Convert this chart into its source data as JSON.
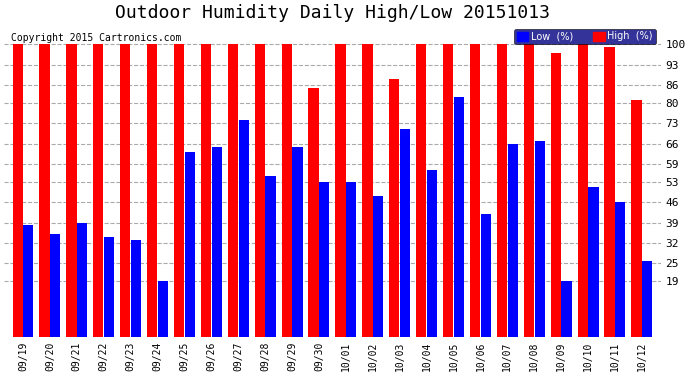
{
  "title": "Outdoor Humidity Daily High/Low 20151013",
  "copyright": "Copyright 2015 Cartronics.com",
  "categories": [
    "09/19",
    "09/20",
    "09/21",
    "09/22",
    "09/23",
    "09/24",
    "09/25",
    "09/26",
    "09/27",
    "09/28",
    "09/29",
    "09/30",
    "10/01",
    "10/02",
    "10/03",
    "10/04",
    "10/05",
    "10/06",
    "10/07",
    "10/08",
    "10/09",
    "10/10",
    "10/11",
    "10/12"
  ],
  "high_values": [
    100,
    100,
    100,
    100,
    100,
    100,
    100,
    100,
    100,
    100,
    100,
    85,
    100,
    100,
    88,
    100,
    100,
    100,
    100,
    100,
    97,
    100,
    99,
    81
  ],
  "low_values": [
    38,
    35,
    39,
    34,
    33,
    19,
    63,
    65,
    74,
    55,
    65,
    53,
    53,
    48,
    71,
    57,
    82,
    42,
    66,
    67,
    19,
    51,
    46,
    26
  ],
  "bar_color_high": "#ff0000",
  "bar_color_low": "#0000ff",
  "bg_color": "#ffffff",
  "grid_color": "#aaaaaa",
  "title_fontsize": 13,
  "ylabel": "",
  "yticks": [
    19,
    25,
    32,
    39,
    46,
    53,
    59,
    66,
    73,
    80,
    86,
    93,
    100
  ],
  "ylim": [
    0,
    107
  ],
  "legend_labels": [
    "Low  (%)",
    "High  (%)"
  ],
  "legend_colors": [
    "#0000ff",
    "#ff0000"
  ]
}
